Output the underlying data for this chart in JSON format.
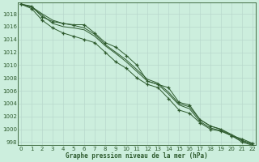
{
  "title": "Graphe pression niveau de la mer (hPa)",
  "background_color": "#cceedd",
  "grid_color": "#b8d8cc",
  "line_color": "#2d5a2d",
  "xlim": [
    -0.3,
    22.3
  ],
  "ylim": [
    997.5,
    1019.8
  ],
  "yticks": [
    998,
    1000,
    1002,
    1004,
    1006,
    1008,
    1010,
    1012,
    1014,
    1016,
    1018
  ],
  "xticks": [
    0,
    1,
    2,
    3,
    4,
    5,
    6,
    7,
    8,
    9,
    10,
    11,
    12,
    13,
    14,
    15,
    16,
    17,
    18,
    19,
    20,
    21,
    22
  ],
  "series": [
    {
      "x": [
        0,
        1,
        2,
        3,
        4,
        5,
        6,
        7,
        8,
        9,
        10,
        11,
        12,
        13,
        14,
        15,
        16,
        17,
        18,
        19,
        20,
        21,
        22
      ],
      "y": [
        1019.5,
        1019.2,
        1017.5,
        1016.8,
        1016.5,
        1016.3,
        1016.3,
        1015.0,
        1013.5,
        1012.8,
        1011.5,
        1010.0,
        1007.5,
        1007.0,
        1006.5,
        1004.2,
        1003.8,
        1001.5,
        1000.5,
        1000.0,
        999.0,
        998.5,
        997.8
      ],
      "marker": "+"
    },
    {
      "x": [
        0,
        1,
        2,
        3,
        4,
        5,
        6,
        7,
        8,
        9,
        10,
        11,
        12,
        13,
        14,
        15,
        16,
        17,
        18,
        19,
        20,
        21,
        22
      ],
      "y": [
        1019.5,
        1018.8,
        1017.0,
        1015.8,
        1015.0,
        1014.5,
        1014.0,
        1013.5,
        1012.0,
        1010.5,
        1009.5,
        1008.0,
        1007.0,
        1006.5,
        1004.8,
        1003.0,
        1002.5,
        1001.0,
        1000.0,
        999.7,
        999.0,
        998.0,
        997.5
      ],
      "marker": "+"
    },
    {
      "x": [
        0,
        1,
        2,
        3,
        4,
        5,
        6,
        7,
        8,
        9,
        10,
        11,
        12,
        13,
        14,
        15,
        16,
        17,
        18,
        19,
        20,
        21,
        22
      ],
      "y": [
        1019.5,
        1019.0,
        1017.8,
        1016.5,
        1016.0,
        1015.8,
        1015.5,
        1014.5,
        1013.0,
        1011.8,
        1010.5,
        1009.0,
        1007.5,
        1007.0,
        1005.5,
        1003.8,
        1003.2,
        1001.2,
        1000.2,
        999.8,
        999.0,
        998.2,
        997.6
      ],
      "marker": null
    },
    {
      "x": [
        0,
        1,
        2,
        3,
        4,
        5,
        6,
        7,
        8,
        9,
        10,
        11,
        12,
        13,
        14,
        15,
        16,
        17,
        18,
        19,
        20,
        21,
        22
      ],
      "y": [
        1019.5,
        1019.1,
        1018.0,
        1017.0,
        1016.5,
        1016.2,
        1015.8,
        1014.8,
        1013.2,
        1012.0,
        1010.8,
        1009.3,
        1007.8,
        1007.2,
        1005.8,
        1004.0,
        1003.5,
        1001.5,
        1000.5,
        1000.0,
        999.2,
        998.3,
        997.7
      ],
      "marker": null
    }
  ]
}
